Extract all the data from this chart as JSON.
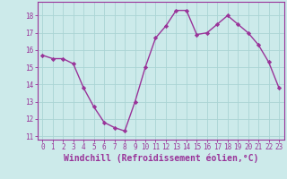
{
  "x": [
    0,
    1,
    2,
    3,
    4,
    5,
    6,
    7,
    8,
    9,
    10,
    11,
    12,
    13,
    14,
    15,
    16,
    17,
    18,
    19,
    20,
    21,
    22,
    23
  ],
  "y": [
    15.7,
    15.5,
    15.5,
    15.2,
    13.8,
    12.7,
    11.8,
    11.5,
    11.3,
    13.0,
    15.0,
    16.7,
    17.4,
    18.3,
    18.3,
    16.9,
    17.0,
    17.5,
    18.0,
    17.5,
    17.0,
    16.3,
    15.3,
    13.8
  ],
  "line_color": "#993399",
  "marker": "D",
  "marker_size": 2.2,
  "bg_color": "#cceaea",
  "grid_color": "#aad4d4",
  "xlabel": "Windchill (Refroidissement éolien,°C)",
  "xlim": [
    -0.5,
    23.5
  ],
  "ylim": [
    10.8,
    18.8
  ],
  "yticks": [
    11,
    12,
    13,
    14,
    15,
    16,
    17,
    18
  ],
  "xticks": [
    0,
    1,
    2,
    3,
    4,
    5,
    6,
    7,
    8,
    9,
    10,
    11,
    12,
    13,
    14,
    15,
    16,
    17,
    18,
    19,
    20,
    21,
    22,
    23
  ],
  "tick_label_fontsize": 5.5,
  "xlabel_fontsize": 7.0,
  "line_width": 1.0
}
